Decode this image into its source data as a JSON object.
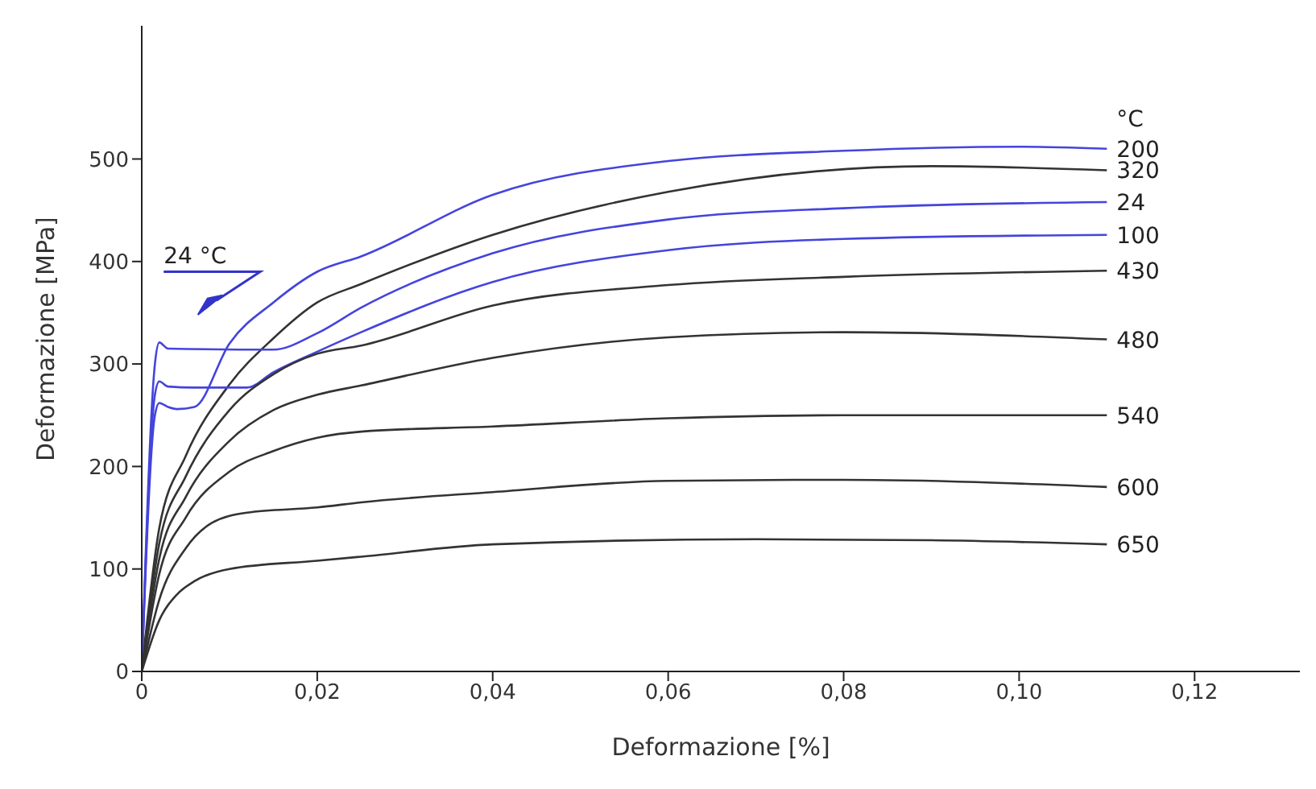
{
  "chart_data": {
    "type": "line",
    "xlabel": "Deformazione [%]",
    "ylabel": "Deformazione [MPa]",
    "legend_title": "°C",
    "annotations": [
      "24 °C"
    ],
    "xlim": [
      0,
      0.132
    ],
    "ylim": [
      0,
      630
    ],
    "xticks": [
      0,
      {
        "value": 0.02,
        "label": "0,02"
      },
      {
        "value": 0.04,
        "label": "0,04"
      },
      {
        "value": 0.06,
        "label": "0,06"
      },
      {
        "value": 0.08,
        "label": "0,08"
      },
      {
        "value": 0.1,
        "label": "0,10"
      },
      {
        "value": 0.12,
        "label": "0,12"
      }
    ],
    "yticks": [
      0,
      100,
      200,
      300,
      400,
      500
    ],
    "grid": false,
    "marker": "none",
    "line_style": "solid",
    "series": [
      {
        "name": "200",
        "color": "#4444dd",
        "x": [
          0,
          0.0015,
          0.002,
          0.003,
          0.004,
          0.006,
          0.01,
          0.015,
          0.02,
          0.025,
          0.04,
          0.06,
          0.08,
          0.1,
          0.11
        ],
        "values": [
          0,
          250,
          262,
          258,
          256,
          258,
          320,
          360,
          390,
          405,
          465,
          498,
          508,
          512,
          510
        ]
      },
      {
        "name": "320",
        "color": "#333333",
        "x": [
          0,
          0.002,
          0.005,
          0.01,
          0.015,
          0.02,
          0.025,
          0.04,
          0.06,
          0.09,
          0.11
        ],
        "values": [
          0,
          140,
          210,
          280,
          325,
          360,
          378,
          426,
          468,
          493,
          489
        ]
      },
      {
        "name": "24",
        "color": "#4444dd",
        "x": [
          0,
          0.0015,
          0.002,
          0.003,
          0.015,
          0.02,
          0.025,
          0.04,
          0.06,
          0.08,
          0.11
        ],
        "values": [
          0,
          300,
          321,
          315,
          314,
          330,
          355,
          408,
          441,
          452,
          458
        ]
      },
      {
        "name": "100",
        "color": "#4444dd",
        "x": [
          0,
          0.0015,
          0.002,
          0.003,
          0.006,
          0.012,
          0.015,
          0.02,
          0.025,
          0.04,
          0.06,
          0.08,
          0.11
        ],
        "values": [
          0,
          270,
          283,
          278,
          277,
          277,
          292,
          312,
          331,
          380,
          411,
          422,
          426
        ]
      },
      {
        "name": "430",
        "color": "#333333",
        "x": [
          0,
          0.002,
          0.005,
          0.01,
          0.015,
          0.02,
          0.025,
          0.04,
          0.06,
          0.08,
          0.11
        ],
        "values": [
          0,
          125,
          190,
          255,
          290,
          310,
          318,
          357,
          377,
          385,
          391
        ]
      },
      {
        "name": "480",
        "color": "#333333",
        "x": [
          0,
          0.002,
          0.005,
          0.01,
          0.015,
          0.02,
          0.025,
          0.04,
          0.06,
          0.08,
          0.11
        ],
        "values": [
          0,
          110,
          170,
          225,
          255,
          270,
          279,
          306,
          326,
          331,
          324
        ]
      },
      {
        "name": "540",
        "color": "#333333",
        "x": [
          0,
          0.002,
          0.005,
          0.01,
          0.015,
          0.02,
          0.025,
          0.04,
          0.06,
          0.08,
          0.11
        ],
        "values": [
          0,
          95,
          150,
          195,
          215,
          228,
          234,
          239,
          247,
          250,
          250
        ]
      },
      {
        "name": "600",
        "color": "#333333",
        "x": [
          0,
          0.002,
          0.005,
          0.008,
          0.012,
          0.02,
          0.025,
          0.04,
          0.06,
          0.08,
          0.11
        ],
        "values": [
          0,
          70,
          120,
          145,
          155,
          160,
          165,
          175,
          186,
          187,
          180
        ]
      },
      {
        "name": "650",
        "color": "#333333",
        "x": [
          0,
          0.002,
          0.004,
          0.006,
          0.01,
          0.02,
          0.025,
          0.04,
          0.07,
          0.09,
          0.11
        ],
        "values": [
          0,
          50,
          75,
          88,
          100,
          108,
          112,
          124,
          129,
          128,
          124
        ]
      }
    ]
  }
}
